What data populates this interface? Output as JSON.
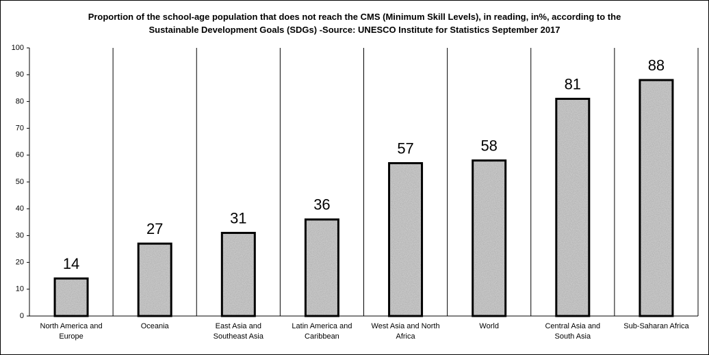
{
  "chart_data": {
    "type": "bar",
    "title": "Proportion of the school-age population that does not reach the CMS (Minimum Skill Levels), in reading, in%, according to the Sustainable Development Goals (SDGs) -Source: UNESCO Institute for Statistics September 2017",
    "categories": [
      "North America and Europe",
      "Oceania",
      "East Asia and Southeast Asia",
      "Latin America and Caribbean",
      "West Asia and North Africa",
      "World",
      "Central Asia and South Asia",
      "Sub-Saharan Africa"
    ],
    "values": [
      14,
      27,
      31,
      36,
      57,
      58,
      81,
      88
    ],
    "color": "#a0a0a0",
    "ylim": [
      0,
      100
    ],
    "yticks": [
      0,
      10,
      20,
      30,
      40,
      50,
      60,
      70,
      80,
      90,
      100
    ],
    "category_separators": true
  }
}
